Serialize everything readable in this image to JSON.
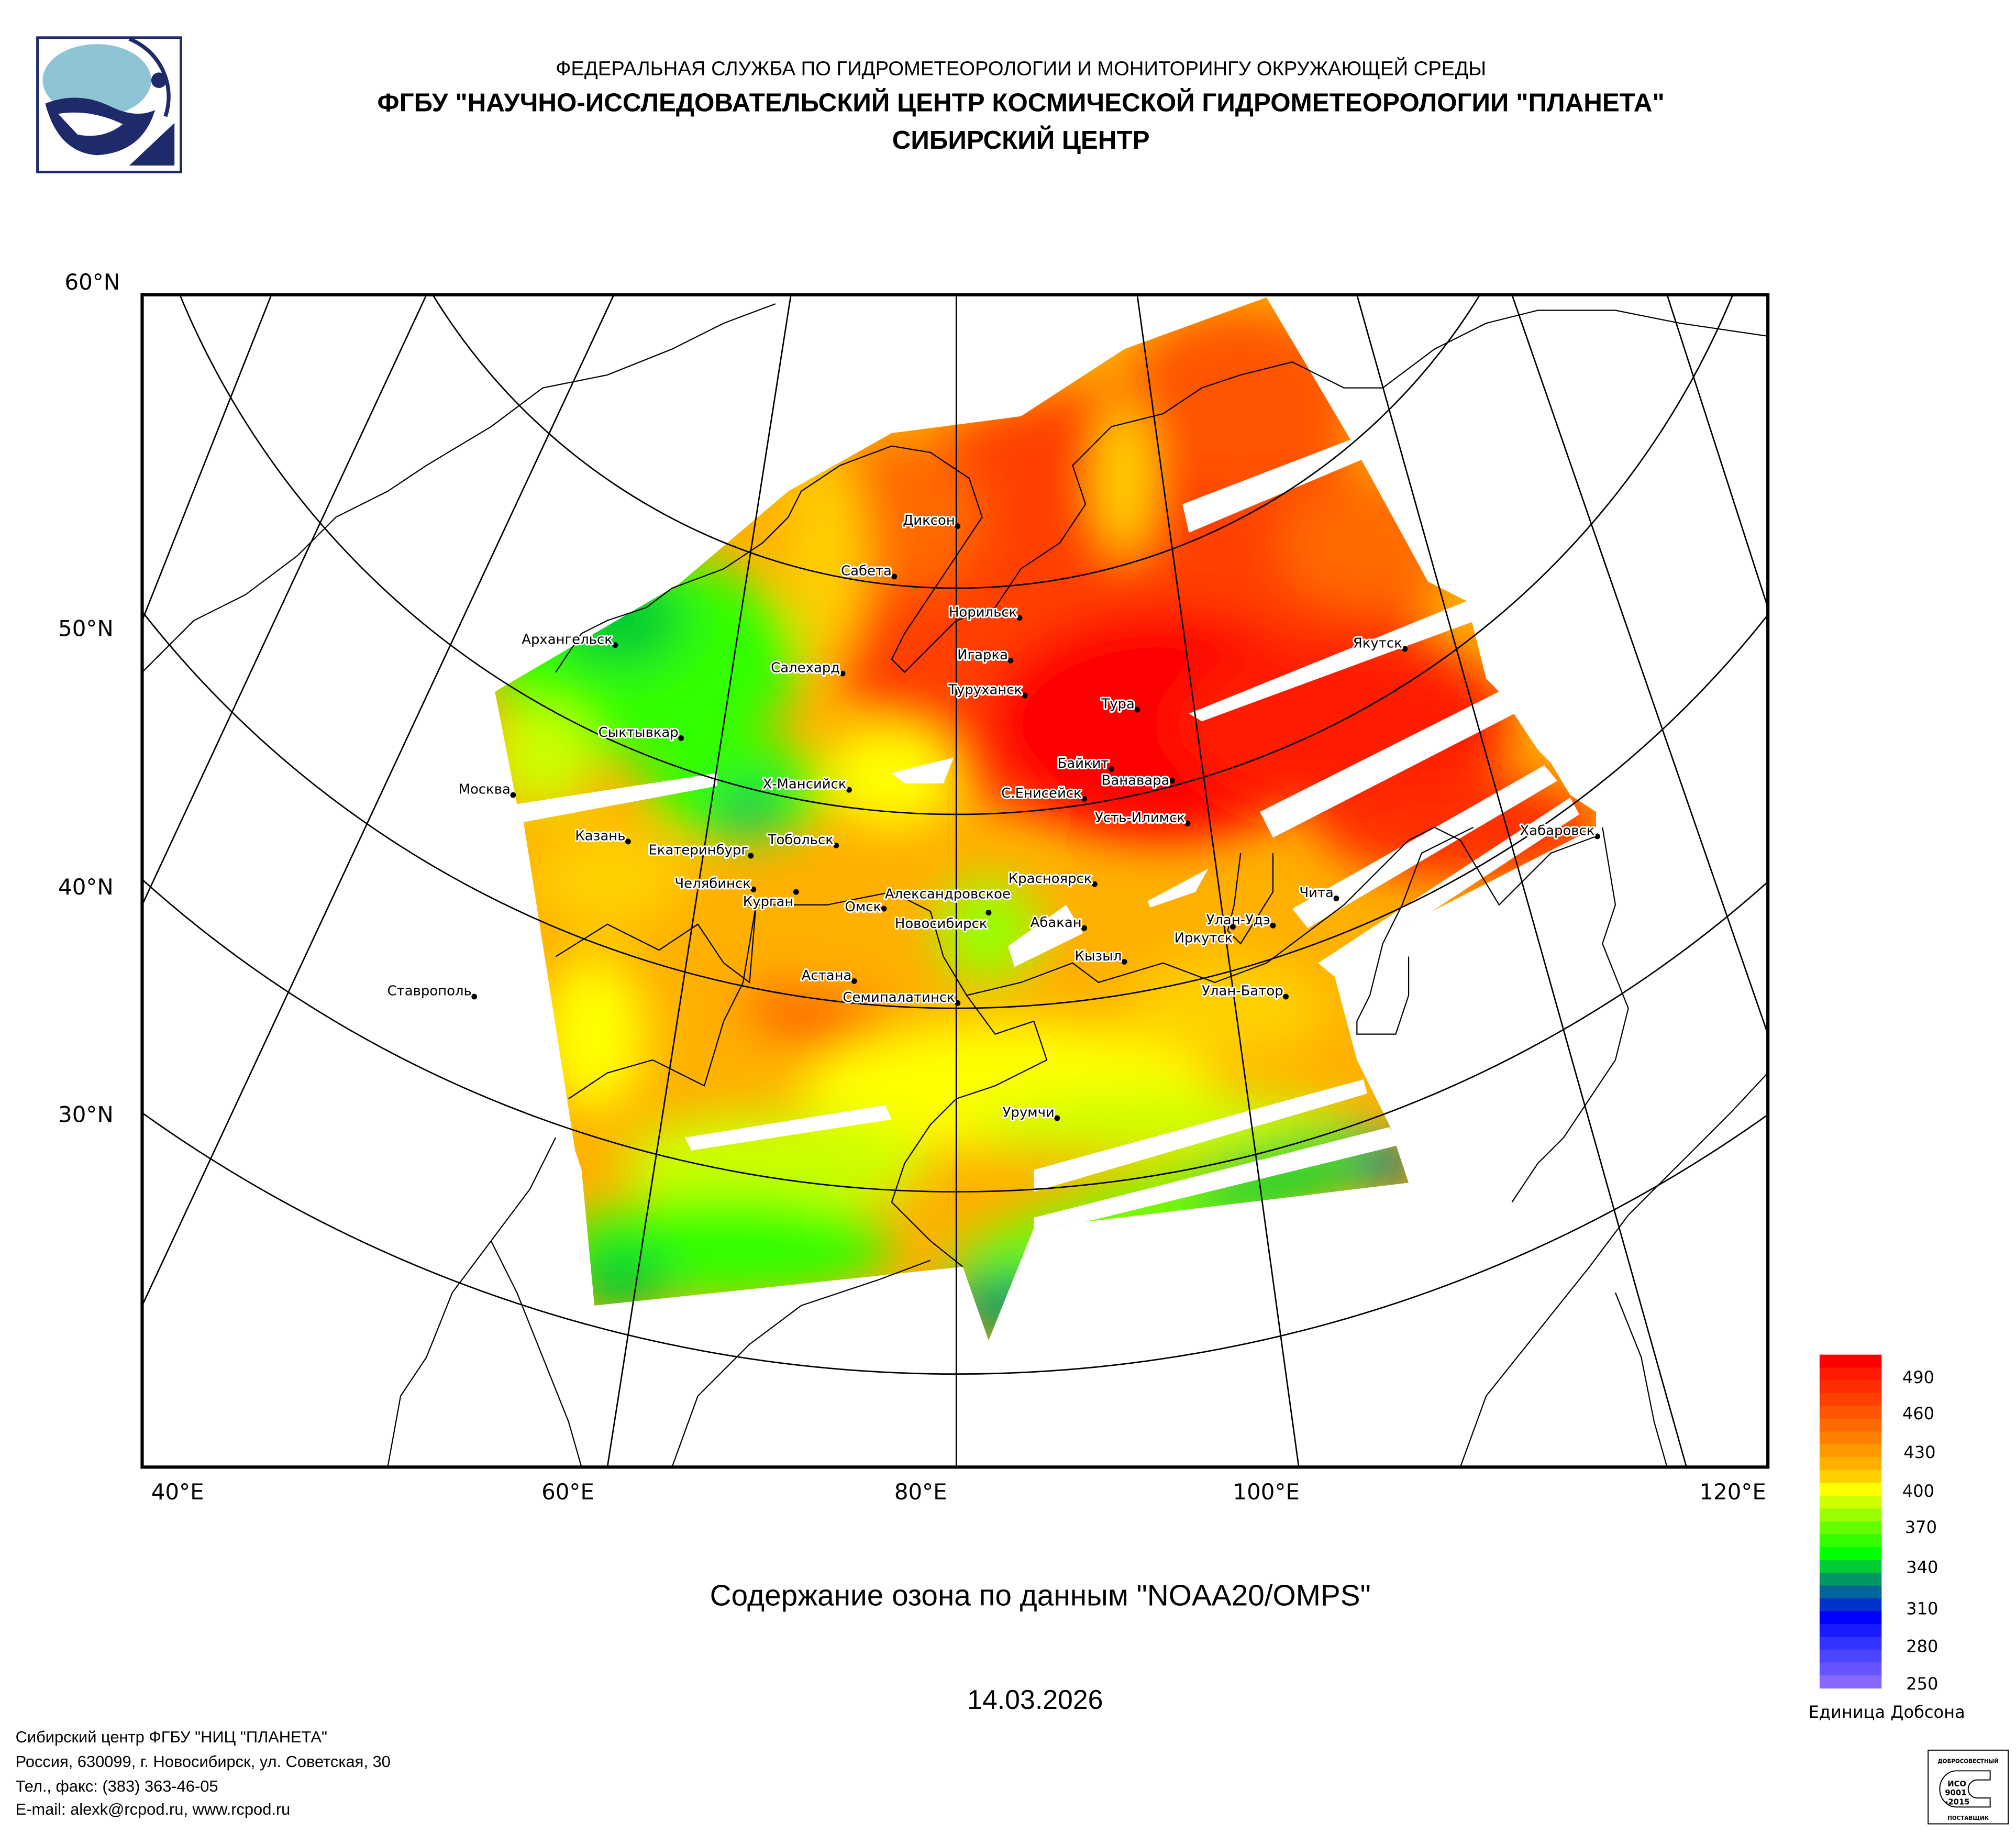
{
  "header": {
    "line1": "ФЕДЕРАЛЬНАЯ СЛУЖБА ПО ГИДРОМЕТЕОРОЛОГИИ И МОНИТОРИНГУ ОКРУЖАЮЩЕЙ СРЕДЫ",
    "line2": "ФГБУ \"НАУЧНО-ИССЛЕДОВАТЕЛЬСКИЙ ЦЕНТР КОСМИЧЕСКОЙ ГИДРОМЕТЕОРОЛОГИИ \"ПЛАНЕТА\"",
    "line3": "СИБИРСКИЙ ЦЕНТР"
  },
  "map": {
    "lat_labels": [
      "60°N",
      "50°N",
      "40°N",
      "30°N"
    ],
    "lon_labels": [
      "40°E",
      "60°E",
      "80°E",
      "100°E",
      "120°E"
    ],
    "cities": [
      "Диксон",
      "Сабета",
      "Норильск",
      "Архангельск",
      "Якутск",
      "Салехард",
      "Игарка",
      "Туруханск",
      "Тура",
      "Сыктывкар",
      "Байкит",
      "Ванавара",
      "Москва",
      "Х-Мансийск",
      "С.Енисейск",
      "Усть-Илимск",
      "Хабаровск",
      "Казань",
      "Тобольск",
      "Екатеринбург",
      "Красноярск",
      "Чита",
      "Челябинск",
      "Курган",
      "Александровское",
      "Омск",
      "Новосибирск",
      "Абакан",
      "Улан-Удэ",
      "Иркутск",
      "Кызыл",
      "Астана",
      "Улан-Батор",
      "Семипалатинск",
      "Ставрополь",
      "Урумчи"
    ]
  },
  "title": "Содержание озона по данным \"NOAA20/OMPS\"",
  "date": "14.03.2026",
  "legend": {
    "unit": "Единица Добсона",
    "ticks": [
      "490",
      "460",
      "430",
      "400",
      "370",
      "340",
      "310",
      "280",
      "250"
    ],
    "colors": [
      "#ff0000",
      "#ff1a00",
      "#ff2e00",
      "#ff4000",
      "#ff5500",
      "#ff6a00",
      "#ff8000",
      "#ff9900",
      "#ffb000",
      "#ffd000",
      "#ffff00",
      "#ccff00",
      "#99ff00",
      "#66ff00",
      "#33ff00",
      "#00ff00",
      "#00cc33",
      "#009966",
      "#006699",
      "#0033cc",
      "#0000ff",
      "#1a1aff",
      "#3333ff",
      "#4d44ff",
      "#6655ff",
      "#8866ff"
    ]
  },
  "footer": {
    "line1": "Сибирский центр ФГБУ \"НИЦ \"ПЛАНЕТА\"",
    "line2": "Россия, 630099, г. Новосибирск, ул. Советская, 30",
    "line3": "Тел., факс: (383) 363-46-05",
    "line4": "E-mail: alexk@rcpod.ru, www.rcpod.ru"
  },
  "stamp": {
    "top": "ДОБРОСОВЕСТНЫЙ",
    "iso1": "ИСО",
    "iso2": "9001",
    "iso3": "-2015",
    "bottom": "ПОСТАВЩИК"
  }
}
